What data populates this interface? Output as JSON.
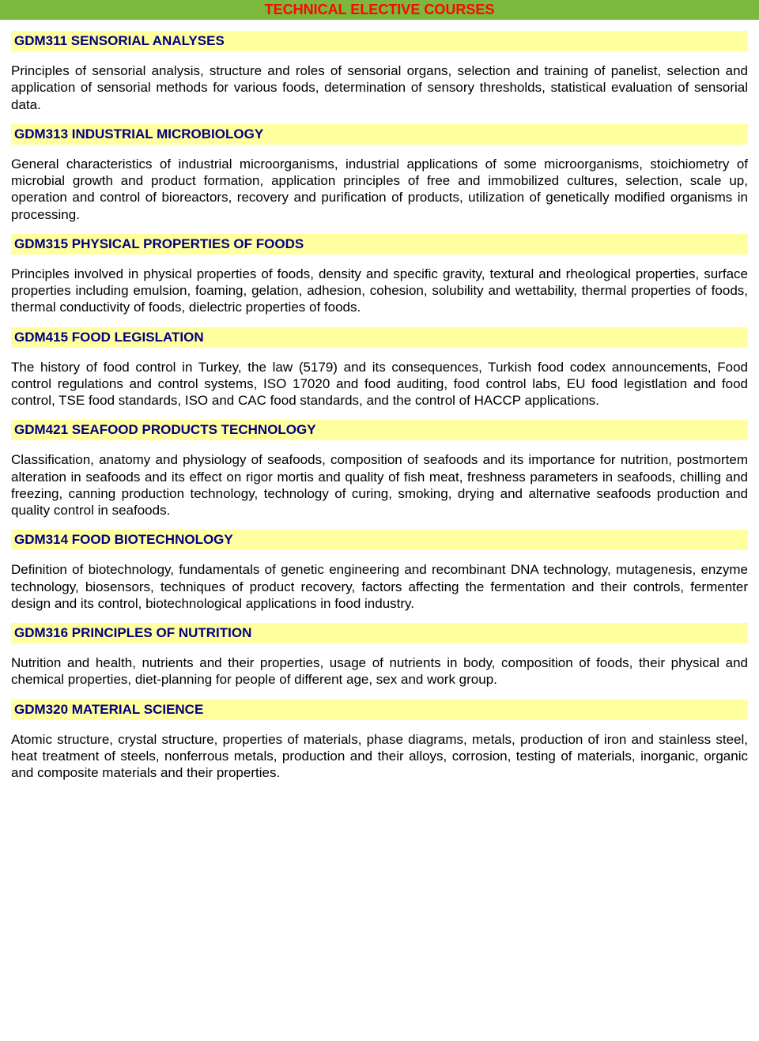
{
  "colors": {
    "header_bg": "#7bb83d",
    "header_text": "#ff0505",
    "title_bg": "#ffffa0",
    "title_text": "#000080",
    "body_text": "#000000",
    "page_bg": "#ffffff"
  },
  "typography": {
    "font_family": "Arial",
    "header_fontsize": 18,
    "title_fontsize": 17,
    "body_fontsize": 17
  },
  "page_header": "TECHNICAL ELECTIVE COURSES",
  "courses": [
    {
      "title": "GDM311 SENSORIAL ANALYSES",
      "description": "Principles of sensorial analysis, structure and roles of sensorial organs, selection and training of panelist, selection and application of sensorial methods for various foods, determination of sensory thresholds, statistical evaluation of sensorial data."
    },
    {
      "title": "GDM313 INDUSTRIAL MICROBIOLOGY",
      "description": "General characteristics of industrial microorganisms, industrial applications of some microorganisms, stoichiometry of microbial growth and product formation, application principles of free and immobilized cultures, selection, scale up, operation and control of bioreactors, recovery and purification of products, utilization of  genetically modified organisms in processing."
    },
    {
      "title": "GDM315 PHYSICAL PROPERTIES OF FOODS",
      "description": "Principles involved in physical properties of foods, density and  specific gravity, textural and rheological properties, surface properties including emulsion, foaming, gelation, adhesion, cohesion, solubility and wettability,  thermal properties of foods, thermal conductivity of foods, dielectric properties of foods."
    },
    {
      "title": "GDM415 FOOD LEGISLATION",
      "description": "The history of food control in Turkey, the law (5179) and its consequences, Turkish food codex announcements, Food control regulations and control systems, ISO 17020 and food auditing, food control labs, EU food legistlation and food control, TSE food standards, ISO and CAC food standards,  and the control of HACCP applications."
    },
    {
      "title": "GDM421 SEAFOOD PRODUCTS TECHNOLOGY",
      "description": "Classification, anatomy and physiology of seafoods, composition of seafoods and its importance for nutrition, postmortem alteration in seafoods and its effect on rigor mortis and quality of fish meat, freshness parameters in seafoods, chilling and freezing, canning production technology, technology of  curing, smoking, drying and alternative seafoods production and quality control in seafoods."
    },
    {
      "title": "GDM314 FOOD BIOTECHNOLOGY",
      "description": "Definition of biotechnology, fundamentals of genetic engineering and recombinant DNA technology, mutagenesis, enzyme technology, biosensors, techniques of product recovery, factors affecting the fermentation and their controls, fermenter design and its control, biotechnological applications in food industry."
    },
    {
      "title": "GDM316 PRINCIPLES OF NUTRITION",
      "description": "Nutrition and health, nutrients and their properties, usage of nutrients in body, composition of foods, their physical and chemical properties, diet-planning for people of different age, sex and work group."
    },
    {
      "title": "GDM320 MATERIAL SCIENCE",
      "description": "Atomic structure, crystal structure, properties of materials, phase diagrams, metals, production of iron and stainless steel, heat treatment of steels, nonferrous metals, production and their alloys, corrosion, testing of materials, inorganic, organic and composite materials and their properties."
    }
  ]
}
